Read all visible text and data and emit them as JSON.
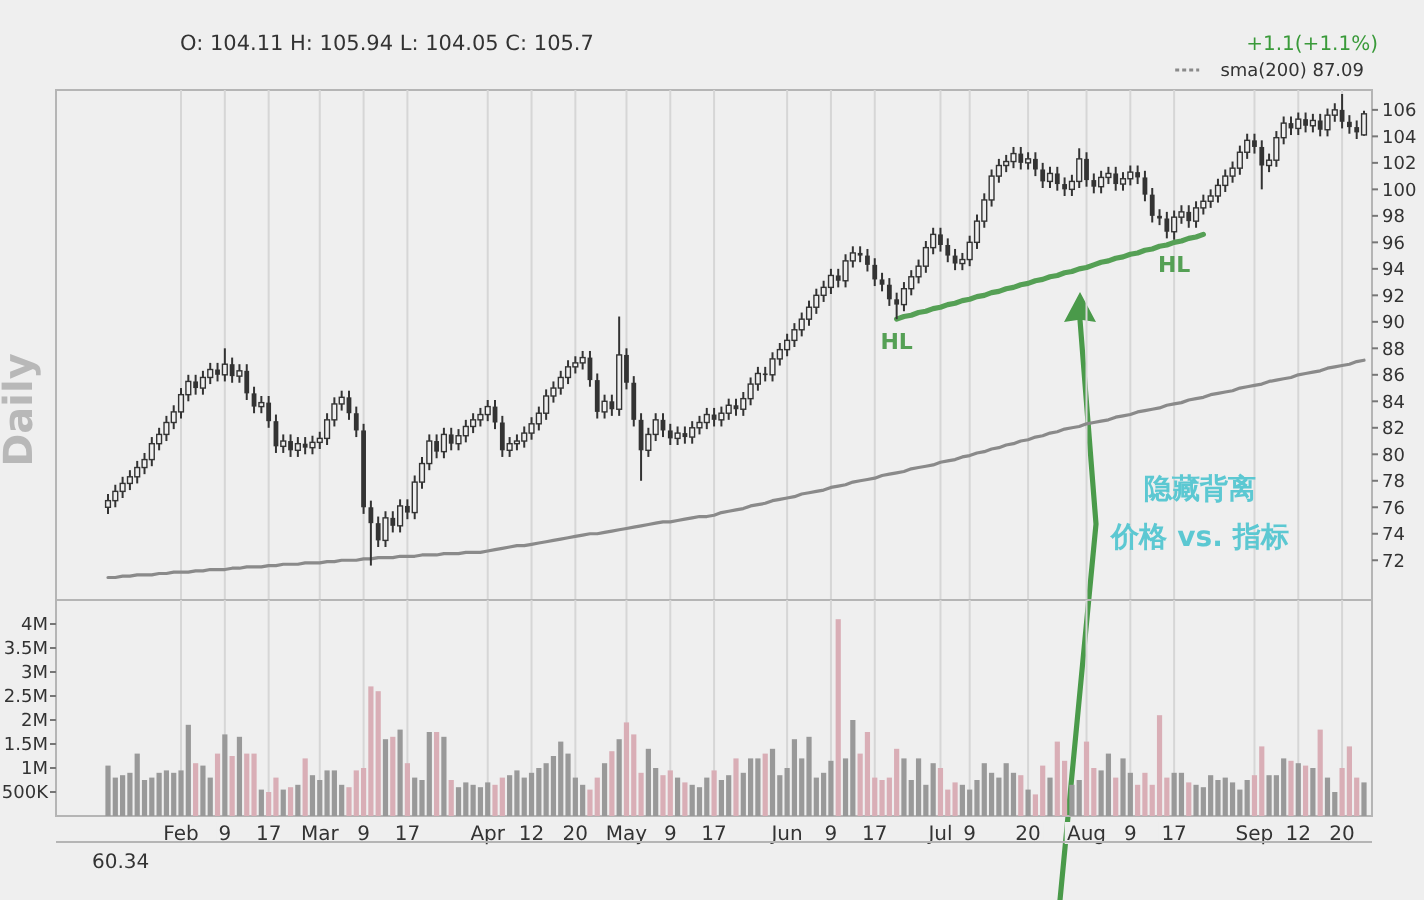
{
  "chart_data": [
    {
      "type": "candlestick",
      "subtitle": "O: 104.11  H: 105.94  L: 104.05  C: 105.7",
      "color": "#333333",
      "ohlc": [
        [
          76.0,
          77.0,
          75.5,
          76.5
        ],
        [
          76.5,
          77.7,
          76.0,
          77.2
        ],
        [
          77.2,
          78.3,
          76.7,
          77.8
        ],
        [
          77.8,
          78.8,
          77.3,
          78.3
        ],
        [
          78.3,
          79.5,
          77.8,
          79.0
        ],
        [
          79.0,
          80.1,
          78.5,
          79.6
        ],
        [
          79.6,
          81.3,
          79.1,
          80.8
        ],
        [
          80.8,
          82.0,
          80.3,
          81.5
        ],
        [
          81.5,
          82.9,
          81.0,
          82.4
        ],
        [
          82.4,
          83.7,
          81.9,
          83.2
        ],
        [
          83.2,
          85.0,
          82.7,
          84.5
        ],
        [
          84.5,
          86.0,
          84.0,
          85.5
        ],
        [
          85.5,
          86.0,
          84.5,
          85.0
        ],
        [
          85.0,
          86.3,
          84.5,
          85.8
        ],
        [
          85.8,
          86.9,
          85.3,
          86.4
        ],
        [
          86.4,
          86.9,
          85.5,
          86.0
        ],
        [
          86.0,
          88.0,
          85.5,
          86.8
        ],
        [
          86.8,
          87.3,
          85.4,
          85.9
        ],
        [
          85.9,
          86.8,
          85.4,
          86.3
        ],
        [
          86.3,
          86.8,
          84.1,
          84.6
        ],
        [
          84.6,
          85.1,
          83.1,
          83.6
        ],
        [
          83.6,
          84.4,
          83.1,
          83.9
        ],
        [
          83.9,
          84.4,
          82.0,
          82.5
        ],
        [
          82.5,
          83.0,
          80.1,
          80.6
        ],
        [
          80.6,
          81.5,
          80.1,
          81.0
        ],
        [
          81.0,
          81.5,
          79.8,
          80.3
        ],
        [
          80.3,
          81.3,
          79.8,
          80.8
        ],
        [
          80.8,
          81.3,
          80.0,
          80.5
        ],
        [
          80.5,
          81.4,
          80.0,
          80.9
        ],
        [
          80.9,
          81.7,
          80.4,
          81.2
        ],
        [
          81.2,
          83.1,
          80.7,
          82.6
        ],
        [
          82.6,
          84.3,
          82.1,
          83.8
        ],
        [
          83.8,
          84.8,
          83.3,
          84.3
        ],
        [
          84.3,
          84.8,
          82.6,
          83.1
        ],
        [
          83.1,
          83.6,
          81.3,
          81.8
        ],
        [
          81.8,
          82.3,
          75.5,
          76.0
        ],
        [
          76.0,
          76.5,
          71.6,
          74.8
        ],
        [
          74.8,
          75.3,
          73.0,
          73.5
        ],
        [
          73.5,
          75.7,
          73.0,
          75.2
        ],
        [
          75.2,
          75.7,
          74.1,
          74.6
        ],
        [
          74.6,
          76.6,
          74.1,
          76.1
        ],
        [
          76.1,
          76.6,
          75.1,
          75.6
        ],
        [
          75.6,
          78.4,
          75.1,
          77.9
        ],
        [
          77.9,
          79.8,
          77.4,
          79.3
        ],
        [
          79.3,
          81.5,
          78.8,
          81.0
        ],
        [
          81.0,
          81.5,
          79.7,
          80.2
        ],
        [
          80.2,
          82.0,
          79.7,
          81.5
        ],
        [
          81.5,
          82.0,
          80.3,
          80.8
        ],
        [
          80.8,
          81.9,
          80.3,
          81.4
        ],
        [
          81.4,
          82.6,
          80.9,
          82.1
        ],
        [
          82.1,
          83.1,
          81.6,
          82.6
        ],
        [
          82.6,
          83.5,
          82.1,
          83.0
        ],
        [
          83.0,
          84.1,
          82.5,
          83.6
        ],
        [
          83.6,
          84.1,
          81.9,
          82.4
        ],
        [
          82.4,
          82.9,
          79.8,
          80.3
        ],
        [
          80.3,
          81.3,
          79.8,
          80.8
        ],
        [
          80.8,
          81.5,
          80.3,
          81.0
        ],
        [
          81.0,
          82.1,
          80.5,
          81.6
        ],
        [
          81.6,
          82.8,
          81.1,
          82.3
        ],
        [
          82.3,
          83.6,
          81.8,
          83.1
        ],
        [
          83.1,
          84.9,
          82.6,
          84.4
        ],
        [
          84.4,
          85.5,
          83.9,
          85.0
        ],
        [
          85.0,
          86.3,
          84.5,
          85.8
        ],
        [
          85.8,
          87.1,
          85.3,
          86.6
        ],
        [
          86.6,
          87.4,
          86.1,
          86.9
        ],
        [
          86.9,
          87.8,
          86.4,
          87.3
        ],
        [
          87.3,
          87.8,
          85.1,
          85.6
        ],
        [
          85.6,
          86.1,
          82.7,
          83.2
        ],
        [
          83.2,
          84.5,
          82.7,
          84.0
        ],
        [
          84.0,
          84.5,
          82.9,
          83.4
        ],
        [
          83.4,
          90.4,
          82.9,
          87.5
        ],
        [
          87.5,
          88.0,
          84.9,
          85.4
        ],
        [
          85.4,
          85.9,
          82.1,
          82.6
        ],
        [
          82.6,
          83.1,
          78.0,
          80.3
        ],
        [
          80.3,
          82.0,
          79.8,
          81.5
        ],
        [
          81.5,
          83.1,
          81.0,
          82.6
        ],
        [
          82.6,
          83.1,
          81.3,
          81.8
        ],
        [
          81.8,
          82.3,
          80.7,
          81.2
        ],
        [
          81.2,
          82.1,
          80.7,
          81.6
        ],
        [
          81.6,
          82.1,
          80.8,
          81.3
        ],
        [
          81.3,
          82.5,
          80.8,
          82.0
        ],
        [
          82.0,
          82.9,
          81.5,
          82.4
        ],
        [
          82.4,
          83.5,
          81.9,
          83.0
        ],
        [
          83.0,
          83.5,
          82.1,
          82.6
        ],
        [
          82.6,
          83.6,
          82.1,
          83.1
        ],
        [
          83.1,
          84.2,
          82.6,
          83.7
        ],
        [
          83.7,
          84.2,
          82.9,
          83.4
        ],
        [
          83.4,
          84.7,
          82.9,
          84.2
        ],
        [
          84.2,
          85.8,
          83.7,
          85.3
        ],
        [
          85.3,
          86.6,
          84.8,
          86.1
        ],
        [
          86.1,
          86.6,
          85.5,
          86.0
        ],
        [
          86.0,
          87.7,
          85.5,
          87.2
        ],
        [
          87.2,
          88.4,
          86.7,
          87.9
        ],
        [
          87.9,
          89.1,
          87.4,
          88.6
        ],
        [
          88.6,
          89.9,
          88.1,
          89.4
        ],
        [
          89.4,
          90.7,
          88.9,
          90.2
        ],
        [
          90.2,
          91.6,
          89.7,
          91.1
        ],
        [
          91.1,
          92.5,
          90.6,
          92.0
        ],
        [
          92.0,
          93.1,
          91.5,
          92.6
        ],
        [
          92.6,
          94.0,
          92.1,
          93.5
        ],
        [
          93.5,
          94.0,
          92.6,
          93.1
        ],
        [
          93.1,
          95.1,
          92.6,
          94.6
        ],
        [
          94.6,
          95.7,
          94.1,
          95.2
        ],
        [
          95.2,
          95.7,
          94.5,
          95.0
        ],
        [
          95.0,
          95.5,
          93.8,
          94.3
        ],
        [
          94.3,
          94.8,
          92.7,
          93.2
        ],
        [
          93.2,
          93.7,
          92.3,
          92.8
        ],
        [
          92.8,
          93.3,
          91.2,
          91.7
        ],
        [
          91.7,
          92.2,
          90.2,
          91.3
        ],
        [
          91.3,
          93.0,
          90.8,
          92.5
        ],
        [
          92.5,
          93.9,
          92.0,
          93.4
        ],
        [
          93.4,
          94.7,
          92.9,
          94.2
        ],
        [
          94.2,
          96.1,
          93.7,
          95.6
        ],
        [
          95.6,
          97.1,
          95.1,
          96.6
        ],
        [
          96.6,
          97.1,
          95.3,
          95.8
        ],
        [
          95.8,
          96.3,
          94.5,
          95.0
        ],
        [
          95.0,
          95.5,
          93.9,
          94.4
        ],
        [
          94.4,
          95.2,
          93.9,
          94.7
        ],
        [
          94.7,
          96.5,
          94.2,
          96.0
        ],
        [
          96.0,
          98.1,
          95.5,
          97.6
        ],
        [
          97.6,
          99.7,
          97.1,
          99.2
        ],
        [
          99.2,
          101.5,
          98.7,
          101.0
        ],
        [
          101.0,
          102.3,
          100.5,
          101.8
        ],
        [
          101.8,
          102.6,
          101.3,
          102.1
        ],
        [
          102.1,
          103.2,
          101.6,
          102.7
        ],
        [
          102.7,
          103.2,
          101.5,
          102.0
        ],
        [
          102.0,
          102.8,
          101.5,
          102.3
        ],
        [
          102.3,
          102.8,
          101.0,
          101.5
        ],
        [
          101.5,
          102.0,
          100.1,
          100.6
        ],
        [
          100.6,
          101.7,
          100.1,
          101.2
        ],
        [
          101.2,
          101.7,
          99.9,
          100.4
        ],
        [
          100.4,
          100.9,
          99.5,
          100.0
        ],
        [
          100.0,
          101.1,
          99.5,
          100.6
        ],
        [
          100.6,
          103.1,
          100.1,
          102.3
        ],
        [
          102.3,
          102.8,
          100.2,
          100.7
        ],
        [
          100.7,
          101.2,
          99.7,
          100.2
        ],
        [
          100.2,
          101.4,
          99.7,
          100.9
        ],
        [
          100.9,
          101.7,
          100.4,
          101.2
        ],
        [
          101.2,
          101.7,
          99.9,
          100.4
        ],
        [
          100.4,
          101.3,
          99.9,
          100.8
        ],
        [
          100.8,
          101.8,
          100.3,
          101.3
        ],
        [
          101.3,
          101.8,
          100.4,
          100.9
        ],
        [
          100.9,
          101.4,
          99.1,
          99.6
        ],
        [
          99.6,
          100.1,
          97.5,
          98.0
        ],
        [
          98.0,
          98.5,
          97.3,
          97.8
        ],
        [
          97.8,
          98.3,
          96.3,
          96.8
        ],
        [
          96.8,
          98.4,
          96.2,
          97.9
        ],
        [
          97.9,
          98.8,
          97.4,
          98.3
        ],
        [
          98.3,
          98.8,
          97.1,
          97.6
        ],
        [
          97.6,
          99.1,
          97.1,
          98.6
        ],
        [
          98.6,
          99.6,
          98.1,
          99.1
        ],
        [
          99.1,
          100.0,
          98.6,
          99.5
        ],
        [
          99.5,
          100.8,
          99.0,
          100.3
        ],
        [
          100.3,
          101.5,
          99.8,
          101.0
        ],
        [
          101.0,
          102.1,
          100.5,
          101.6
        ],
        [
          101.6,
          103.3,
          101.1,
          102.8
        ],
        [
          102.8,
          104.2,
          102.3,
          103.7
        ],
        [
          103.7,
          104.2,
          102.7,
          103.2
        ],
        [
          103.2,
          103.7,
          100.0,
          101.8
        ],
        [
          101.8,
          102.7,
          101.3,
          102.2
        ],
        [
          102.2,
          104.4,
          101.7,
          103.9
        ],
        [
          103.9,
          105.5,
          103.4,
          105.0
        ],
        [
          105.0,
          105.5,
          104.1,
          104.6
        ],
        [
          104.6,
          105.8,
          104.1,
          105.3
        ],
        [
          105.3,
          105.8,
          104.3,
          104.8
        ],
        [
          104.8,
          105.7,
          104.3,
          105.2
        ],
        [
          105.2,
          105.7,
          104.0,
          104.5
        ],
        [
          104.5,
          106.1,
          104.0,
          105.6
        ],
        [
          105.6,
          106.5,
          105.1,
          106.0
        ],
        [
          106.0,
          107.2,
          104.6,
          105.1
        ],
        [
          105.1,
          105.6,
          104.2,
          104.7
        ],
        [
          104.7,
          105.2,
          103.8,
          104.3
        ],
        [
          104.11,
          105.94,
          104.05,
          105.7
        ]
      ],
      "series": [
        {
          "type": "line",
          "name": "sma(200) 87.09",
          "color": "#8a8a8a",
          "line_style": "solid",
          "values": [
            70.7,
            70.7,
            70.8,
            70.8,
            70.9,
            70.9,
            70.9,
            71.0,
            71.0,
            71.1,
            71.1,
            71.1,
            71.2,
            71.2,
            71.3,
            71.3,
            71.3,
            71.4,
            71.4,
            71.5,
            71.5,
            71.5,
            71.6,
            71.6,
            71.7,
            71.7,
            71.7,
            71.8,
            71.8,
            71.8,
            71.9,
            71.9,
            72.0,
            72.0,
            72.0,
            72.1,
            72.1,
            72.2,
            72.2,
            72.2,
            72.3,
            72.3,
            72.3,
            72.4,
            72.4,
            72.4,
            72.5,
            72.5,
            72.5,
            72.6,
            72.6,
            72.6,
            72.7,
            72.8,
            72.9,
            73.0,
            73.1,
            73.1,
            73.2,
            73.3,
            73.4,
            73.5,
            73.6,
            73.7,
            73.8,
            73.9,
            74.0,
            74.0,
            74.1,
            74.2,
            74.3,
            74.4,
            74.5,
            74.6,
            74.7,
            74.8,
            74.9,
            74.9,
            75.0,
            75.1,
            75.2,
            75.3,
            75.3,
            75.4,
            75.6,
            75.7,
            75.8,
            75.9,
            76.1,
            76.2,
            76.3,
            76.5,
            76.6,
            76.7,
            76.8,
            77.0,
            77.1,
            77.2,
            77.3,
            77.5,
            77.6,
            77.7,
            77.9,
            78.0,
            78.1,
            78.2,
            78.4,
            78.5,
            78.6,
            78.7,
            78.9,
            79.0,
            79.1,
            79.2,
            79.4,
            79.5,
            79.6,
            79.8,
            79.9,
            80.1,
            80.2,
            80.4,
            80.5,
            80.7,
            80.8,
            81.0,
            81.1,
            81.3,
            81.4,
            81.6,
            81.7,
            81.9,
            82.0,
            82.1,
            82.3,
            82.4,
            82.5,
            82.6,
            82.8,
            82.9,
            83.0,
            83.2,
            83.3,
            83.4,
            83.5,
            83.7,
            83.8,
            83.9,
            84.1,
            84.2,
            84.3,
            84.5,
            84.6,
            84.7,
            84.8,
            85.0,
            85.1,
            85.2,
            85.3,
            85.5,
            85.6,
            85.7,
            85.8,
            86.0,
            86.1,
            86.2,
            86.3,
            86.5,
            86.6,
            86.7,
            86.8,
            87.0,
            87.1
          ]
        },
        {
          "type": "line",
          "color": "#55a055",
          "line_style": "solid",
          "values": [
            null,
            null,
            null,
            null,
            null,
            null,
            null,
            null,
            null,
            null,
            null,
            null,
            null,
            null,
            null,
            null,
            null,
            null,
            null,
            null,
            null,
            null,
            null,
            null,
            null,
            null,
            null,
            null,
            null,
            null,
            null,
            null,
            null,
            null,
            null,
            null,
            null,
            null,
            null,
            null,
            null,
            null,
            null,
            null,
            null,
            null,
            null,
            null,
            null,
            null,
            null,
            null,
            null,
            null,
            null,
            null,
            null,
            null,
            null,
            null,
            null,
            null,
            null,
            null,
            null,
            null,
            null,
            null,
            null,
            null,
            null,
            null,
            null,
            null,
            null,
            null,
            null,
            null,
            null,
            null,
            null,
            null,
            null,
            null,
            null,
            null,
            null,
            null,
            null,
            null,
            null,
            null,
            null,
            null,
            null,
            null,
            null,
            null,
            null,
            null,
            null,
            null,
            null,
            null,
            null,
            null,
            null,
            null,
            90.2,
            90.4,
            90.5,
            90.7,
            90.8,
            91.0,
            91.1,
            91.3,
            91.4,
            91.6,
            91.7,
            91.9,
            92.0,
            92.2,
            92.3,
            92.5,
            92.6,
            92.8,
            92.9,
            93.1,
            93.2,
            93.4,
            93.5,
            93.7,
            93.8,
            94.0,
            94.1,
            94.3,
            94.5,
            94.6,
            94.8,
            94.9,
            95.1,
            95.2,
            95.4,
            95.5,
            95.7,
            95.8,
            96.0,
            96.1,
            96.3,
            96.4,
            96.6,
            null,
            null,
            null,
            null,
            null,
            null,
            null,
            null,
            null,
            null,
            null,
            null,
            null,
            null,
            null,
            null,
            null,
            null,
            null,
            null,
            null,
            null
          ]
        }
      ],
      "ylim": [
        69,
        107.5
      ],
      "yticks": [
        72,
        74,
        76,
        78,
        80,
        82,
        84,
        86,
        88,
        90,
        92,
        94,
        96,
        98,
        100,
        102,
        104,
        106
      ],
      "tick_labels": "y",
      "grid": "x",
      "legend": "top right",
      "annotations": [
        "Daily",
        "+1.1(+1.1%)",
        "隐藏背离",
        "价格 vs. 指标",
        "60.34",
        {
          "text": "HL",
          "y": 90.2
        },
        {
          "text": "HL",
          "y": 96.0
        }
      ]
    },
    {
      "type": "bar",
      "categories": [
        null,
        null,
        null,
        null,
        null,
        null,
        null,
        null,
        null,
        null,
        "Feb",
        null,
        null,
        null,
        null,
        null,
        "9",
        null,
        null,
        null,
        null,
        null,
        "17",
        null,
        null,
        null,
        null,
        null,
        null,
        "Mar",
        null,
        null,
        null,
        null,
        null,
        "9",
        null,
        null,
        null,
        null,
        null,
        "17",
        null,
        null,
        null,
        null,
        null,
        null,
        null,
        null,
        null,
        null,
        "Apr",
        null,
        null,
        null,
        null,
        null,
        "12",
        null,
        null,
        null,
        null,
        null,
        "20",
        null,
        null,
        null,
        null,
        null,
        null,
        "May",
        null,
        null,
        null,
        null,
        null,
        "9",
        null,
        null,
        null,
        null,
        null,
        "17",
        null,
        null,
        null,
        null,
        null,
        null,
        null,
        null,
        null,
        "Jun",
        null,
        null,
        null,
        null,
        null,
        "9",
        null,
        null,
        null,
        null,
        null,
        "17",
        null,
        null,
        null,
        null,
        null,
        null,
        null,
        null,
        "Jul",
        null,
        null,
        null,
        "9",
        null,
        null,
        null,
        null,
        null,
        null,
        null,
        "20",
        null,
        null,
        null,
        null,
        null,
        null,
        null,
        "Aug",
        null,
        null,
        null,
        null,
        null,
        "9",
        null,
        null,
        null,
        null,
        null,
        "17",
        null,
        null,
        null,
        null,
        null,
        null,
        null,
        null,
        null,
        null,
        "Sep",
        null,
        null,
        null,
        null,
        null,
        "12",
        null,
        null,
        null,
        null,
        null,
        "20",
        null,
        null,
        null
      ],
      "values": [
        1050000,
        800000,
        850000,
        900000,
        1300000,
        750000,
        800000,
        900000,
        950000,
        900000,
        950000,
        1900000,
        1100000,
        1050000,
        800000,
        1300000,
        1700000,
        1250000,
        1650000,
        1300000,
        1300000,
        550000,
        500000,
        800000,
        550000,
        600000,
        650000,
        1200000,
        850000,
        750000,
        950000,
        950000,
        650000,
        600000,
        950000,
        1000000,
        2700000,
        2600000,
        1600000,
        1650000,
        1800000,
        1100000,
        800000,
        750000,
        1750000,
        1750000,
        1650000,
        750000,
        600000,
        700000,
        650000,
        600000,
        700000,
        650000,
        800000,
        850000,
        950000,
        800000,
        900000,
        1000000,
        1100000,
        1250000,
        1550000,
        1300000,
        800000,
        650000,
        550000,
        800000,
        1100000,
        1350000,
        1600000,
        1950000,
        1700000,
        900000,
        1400000,
        1000000,
        850000,
        950000,
        800000,
        700000,
        650000,
        600000,
        800000,
        950000,
        750000,
        850000,
        1200000,
        900000,
        1200000,
        1200000,
        1300000,
        1400000,
        850000,
        1000000,
        1600000,
        1200000,
        1650000,
        800000,
        900000,
        1150000,
        4100000,
        1200000,
        2000000,
        1300000,
        1750000,
        800000,
        750000,
        800000,
        1400000,
        1200000,
        750000,
        1200000,
        650000,
        1100000,
        1000000,
        550000,
        700000,
        650000,
        550000,
        750000,
        1100000,
        900000,
        800000,
        1100000,
        900000,
        850000,
        550000,
        450000,
        1050000,
        800000,
        1550000,
        1150000,
        650000,
        750000,
        1550000,
        1000000,
        950000,
        1300000,
        800000,
        1200000,
        900000,
        650000,
        900000,
        650000,
        2100000,
        800000,
        900000,
        900000,
        700000,
        650000,
        600000,
        850000,
        750000,
        800000,
        700000,
        550000,
        750000,
        850000,
        1450000,
        850000,
        850000,
        1200000,
        1150000,
        1100000,
        1050000,
        1000000,
        1800000,
        800000,
        500000,
        1000000,
        1450000,
        800000,
        700000
      ],
      "colors": [
        "#999999",
        "#999999",
        "#999999",
        "#999999",
        "#999999",
        "#999999",
        "#999999",
        "#999999",
        "#999999",
        "#999999",
        "#999999",
        "#999999",
        "#d9aeb6",
        "#999999",
        "#999999",
        "#d9aeb6",
        "#999999",
        "#d9aeb6",
        "#999999",
        "#d9aeb6",
        "#d9aeb6",
        "#999999",
        "#d9aeb6",
        "#d9aeb6",
        "#999999",
        "#d9aeb6",
        "#999999",
        "#d9aeb6",
        "#999999",
        "#999999",
        "#999999",
        "#999999",
        "#999999",
        "#d9aeb6",
        "#d9aeb6",
        "#d9aeb6",
        "#d9aeb6",
        "#d9aeb6",
        "#999999",
        "#d9aeb6",
        "#999999",
        "#d9aeb6",
        "#999999",
        "#999999",
        "#999999",
        "#d9aeb6",
        "#999999",
        "#d9aeb6",
        "#999999",
        "#999999",
        "#999999",
        "#999999",
        "#999999",
        "#d9aeb6",
        "#d9aeb6",
        "#999999",
        "#999999",
        "#999999",
        "#999999",
        "#999999",
        "#999999",
        "#999999",
        "#999999",
        "#999999",
        "#999999",
        "#999999",
        "#d9aeb6",
        "#d9aeb6",
        "#999999",
        "#d9aeb6",
        "#999999",
        "#d9aeb6",
        "#d9aeb6",
        "#d9aeb6",
        "#999999",
        "#999999",
        "#d9aeb6",
        "#d9aeb6",
        "#999999",
        "#d9aeb6",
        "#999999",
        "#999999",
        "#999999",
        "#d9aeb6",
        "#999999",
        "#999999",
        "#d9aeb6",
        "#999999",
        "#999999",
        "#999999",
        "#d9aeb6",
        "#999999",
        "#999999",
        "#999999",
        "#999999",
        "#999999",
        "#999999",
        "#999999",
        "#999999",
        "#999999",
        "#d9aeb6",
        "#999999",
        "#999999",
        "#d9aeb6",
        "#d9aeb6",
        "#d9aeb6",
        "#d9aeb6",
        "#d9aeb6",
        "#d9aeb6",
        "#999999",
        "#999999",
        "#999999",
        "#999999",
        "#999999",
        "#d9aeb6",
        "#d9aeb6",
        "#d9aeb6",
        "#999999",
        "#999999",
        "#999999",
        "#999999",
        "#999999",
        "#999999",
        "#999999",
        "#999999",
        "#d9aeb6",
        "#999999",
        "#d9aeb6",
        "#d9aeb6",
        "#999999",
        "#d9aeb6",
        "#d9aeb6",
        "#999999",
        "#999999",
        "#d9aeb6",
        "#d9aeb6",
        "#999999",
        "#999999",
        "#d9aeb6",
        "#999999",
        "#999999",
        "#d9aeb6",
        "#d9aeb6",
        "#d9aeb6",
        "#d9aeb6",
        "#d9aeb6",
        "#999999",
        "#999999",
        "#d9aeb6",
        "#999999",
        "#999999",
        "#999999",
        "#999999",
        "#999999",
        "#999999",
        "#999999",
        "#999999",
        "#d9aeb6",
        "#d9aeb6",
        "#999999",
        "#999999",
        "#999999",
        "#d9aeb6",
        "#999999",
        "#d9aeb6",
        "#999999",
        "#d9aeb6",
        "#999999",
        "#999999",
        "#d9aeb6",
        "#d9aeb6",
        "#d9aeb6",
        "#999999"
      ],
      "ylim": [
        0,
        4500000
      ],
      "yticks": [
        {
          "value": 500000,
          "label": "500K"
        },
        {
          "value": 1000000,
          "label": "1M"
        },
        {
          "value": 1500000,
          "label": "1.5M"
        },
        {
          "value": 2000000,
          "label": "2M"
        },
        {
          "value": 2500000,
          "label": "2.5M"
        },
        {
          "value": 3000000,
          "label": "3M"
        },
        {
          "value": 3500000,
          "label": "3.5M"
        },
        {
          "value": 4000000,
          "label": "4M"
        }
      ],
      "grid": "x"
    }
  ]
}
